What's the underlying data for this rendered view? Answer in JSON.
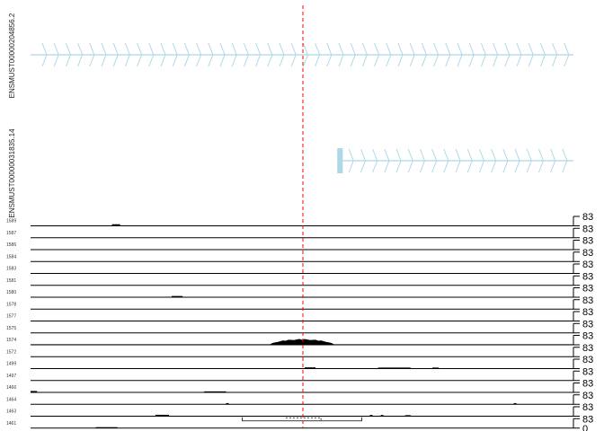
{
  "chart_data": {
    "type": "genome-coverage-tracks",
    "marker_line": {
      "color": "#ff0000",
      "style": "dashed"
    },
    "transcripts": [
      {
        "name": "ENSMUST00000204856.2",
        "strand": "+",
        "color": "#add8e6",
        "span": [
          0.0,
          1.0
        ],
        "exons": []
      },
      {
        "name": "ENSMUST00000031835.14",
        "strand": "+",
        "color": "#add8e6",
        "span": [
          0.565,
          1.0
        ],
        "exons": [
          [
            0.565,
            0.575
          ]
        ]
      }
    ],
    "coverage_tracks": {
      "ymax_label": "83",
      "ymin_label": "0",
      "fill_color": "#000000",
      "samples": [
        "1589",
        "1587",
        "1586",
        "1584",
        "1583",
        "1581",
        "1580",
        "1578",
        "1577",
        "1575",
        "1574",
        "1572",
        "1499",
        "1497",
        "1466",
        "1464",
        "1463",
        "1461"
      ],
      "features": [
        [
          {
            "x": 0.15,
            "w": 0.015,
            "h": 0.12
          }
        ],
        [],
        [],
        [],
        [],
        [],
        [
          {
            "x": 0.26,
            "w": 0.02,
            "h": 0.08
          }
        ],
        [],
        [],
        [],
        [
          {
            "x": 0.44,
            "w": 0.12,
            "h": 0.62,
            "shape": "peak"
          },
          {
            "x": 0.0,
            "w": 1.0,
            "h": 0.06,
            "shape": "noise"
          }
        ],
        [],
        [
          {
            "x": 0.505,
            "w": 0.02,
            "h": 0.08
          },
          {
            "x": 0.64,
            "w": 0.06,
            "h": 0.06
          },
          {
            "x": 0.74,
            "w": 0.012,
            "h": 0.06
          }
        ],
        [],
        [
          {
            "x": 0.0,
            "w": 0.012,
            "h": 0.1
          },
          {
            "x": 0.32,
            "w": 0.04,
            "h": 0.06
          }
        ],
        [
          {
            "x": 0.36,
            "w": 0.005,
            "h": 0.08
          },
          {
            "x": 0.89,
            "w": 0.005,
            "h": 0.08
          }
        ],
        [
          {
            "x": 0.23,
            "w": 0.025,
            "h": 0.1
          },
          {
            "x": 0.625,
            "w": 0.005,
            "h": 0.08
          },
          {
            "x": 0.645,
            "w": 0.005,
            "h": 0.08
          },
          {
            "x": 0.69,
            "w": 0.01,
            "h": 0.06
          }
        ],
        [
          {
            "x": 0.12,
            "w": 0.04,
            "h": 0.05
          }
        ]
      ]
    }
  }
}
